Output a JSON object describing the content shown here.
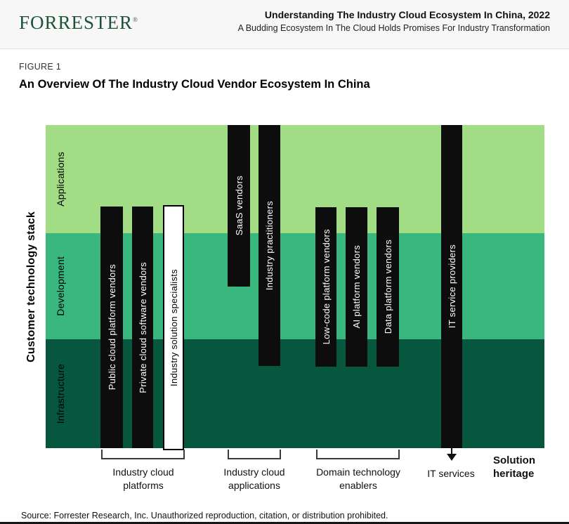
{
  "header": {
    "logo": "FORRESTER",
    "logo_mark": "®",
    "title": "Understanding The Industry Cloud Ecosystem In China, 2022",
    "subtitle": "A Budding Ecosystem In The Cloud Holds Promises For Industry Transformation"
  },
  "figure": {
    "label": "FIGURE 1",
    "title": "An Overview Of The Industry Cloud Vendor Ecosystem In China"
  },
  "stack": {
    "axis_label": "Customer technology stack",
    "bands": [
      {
        "label": "Applications",
        "color": "#a2dd86"
      },
      {
        "label": "Development",
        "color": "#3ab77e"
      },
      {
        "label": "Infrastructure",
        "color": "#07573f"
      }
    ]
  },
  "vendors": [
    {
      "label": "Public cloud platform vendors",
      "style": "black",
      "layers": "development-infrastructure"
    },
    {
      "label": "Private cloud software vendors",
      "style": "black",
      "layers": "development-infrastructure"
    },
    {
      "label": "Industry solution specialists",
      "style": "white",
      "layers": "development-infrastructure"
    },
    {
      "label": "SaaS vendors",
      "style": "black",
      "layers": "applications-development"
    },
    {
      "label": "Industry practitioners",
      "style": "black",
      "layers": "applications-infrastructure"
    },
    {
      "label": "Low-code platform vendors",
      "style": "black",
      "layers": "development-infrastructure"
    },
    {
      "label": "AI platform vendors",
      "style": "black",
      "layers": "development-infrastructure"
    },
    {
      "label": "Data platform vendors",
      "style": "black",
      "layers": "development-infrastructure"
    },
    {
      "label": "IT service providers",
      "style": "black",
      "layers": "applications-infrastructure"
    }
  ],
  "groups": [
    {
      "label": "Industry cloud platforms"
    },
    {
      "label": "Industry cloud applications"
    },
    {
      "label": "Domain technology enablers"
    },
    {
      "label": "IT services"
    }
  ],
  "solution_heritage": "Solution heritage",
  "source": "Source: Forrester Research, Inc. Unauthorized reproduction, citation, or distribution prohibited.",
  "colors": {
    "header_background": "#f7f7f7",
    "logo_green": "#1d5438",
    "bar_black": "#0d0d0d",
    "band_applications": "#a2dd86",
    "band_development": "#3ab77e",
    "band_infrastructure": "#07573f"
  }
}
